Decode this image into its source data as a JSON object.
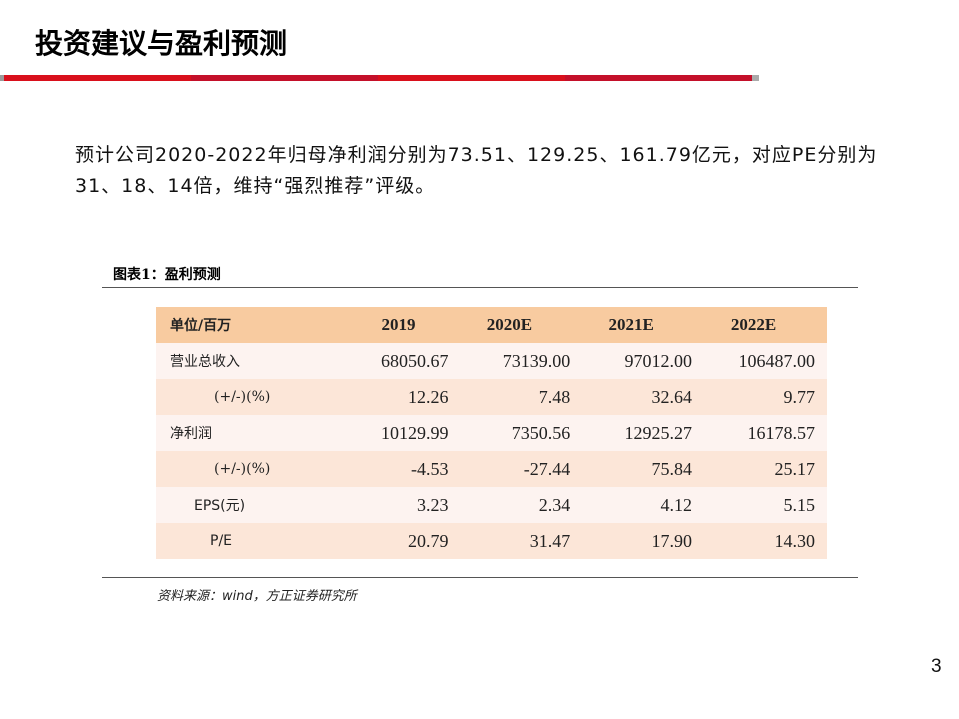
{
  "slide": {
    "title": "投资建议与盈利预测",
    "accent_color": "#d9101c",
    "paragraph": "预计公司2020-2022年归母净利润分别为73.51、129.25、161.79亿元，对应PE分别为31、18、14倍，维持“强烈推荐”评级。",
    "page_number": "3"
  },
  "figure": {
    "title": "图表1：盈利预测",
    "source": "资料来源：wind，方正证券研究所",
    "table": {
      "header": [
        "单位/百万",
        "2019",
        "2020E",
        "2021E",
        "2022E"
      ],
      "rows": [
        {
          "label": "营业总收入",
          "values": [
            "68050.67",
            "73139.00",
            "97012.00",
            "106487.00"
          ]
        },
        {
          "label": "(+/-)(%)",
          "values": [
            "12.26",
            "7.48",
            "32.64",
            "9.77"
          ]
        },
        {
          "label": "净利润",
          "values": [
            "10129.99",
            "7350.56",
            "12925.27",
            "16178.57"
          ]
        },
        {
          "label": "(+/-)(%)",
          "values": [
            "-4.53",
            "-27.44",
            "75.84",
            "25.17"
          ]
        },
        {
          "label": "EPS(元)",
          "values": [
            "3.23",
            "2.34",
            "4.12",
            "5.15"
          ]
        },
        {
          "label": "P/E",
          "values": [
            "20.79",
            "31.47",
            "17.90",
            "14.30"
          ]
        }
      ]
    }
  }
}
